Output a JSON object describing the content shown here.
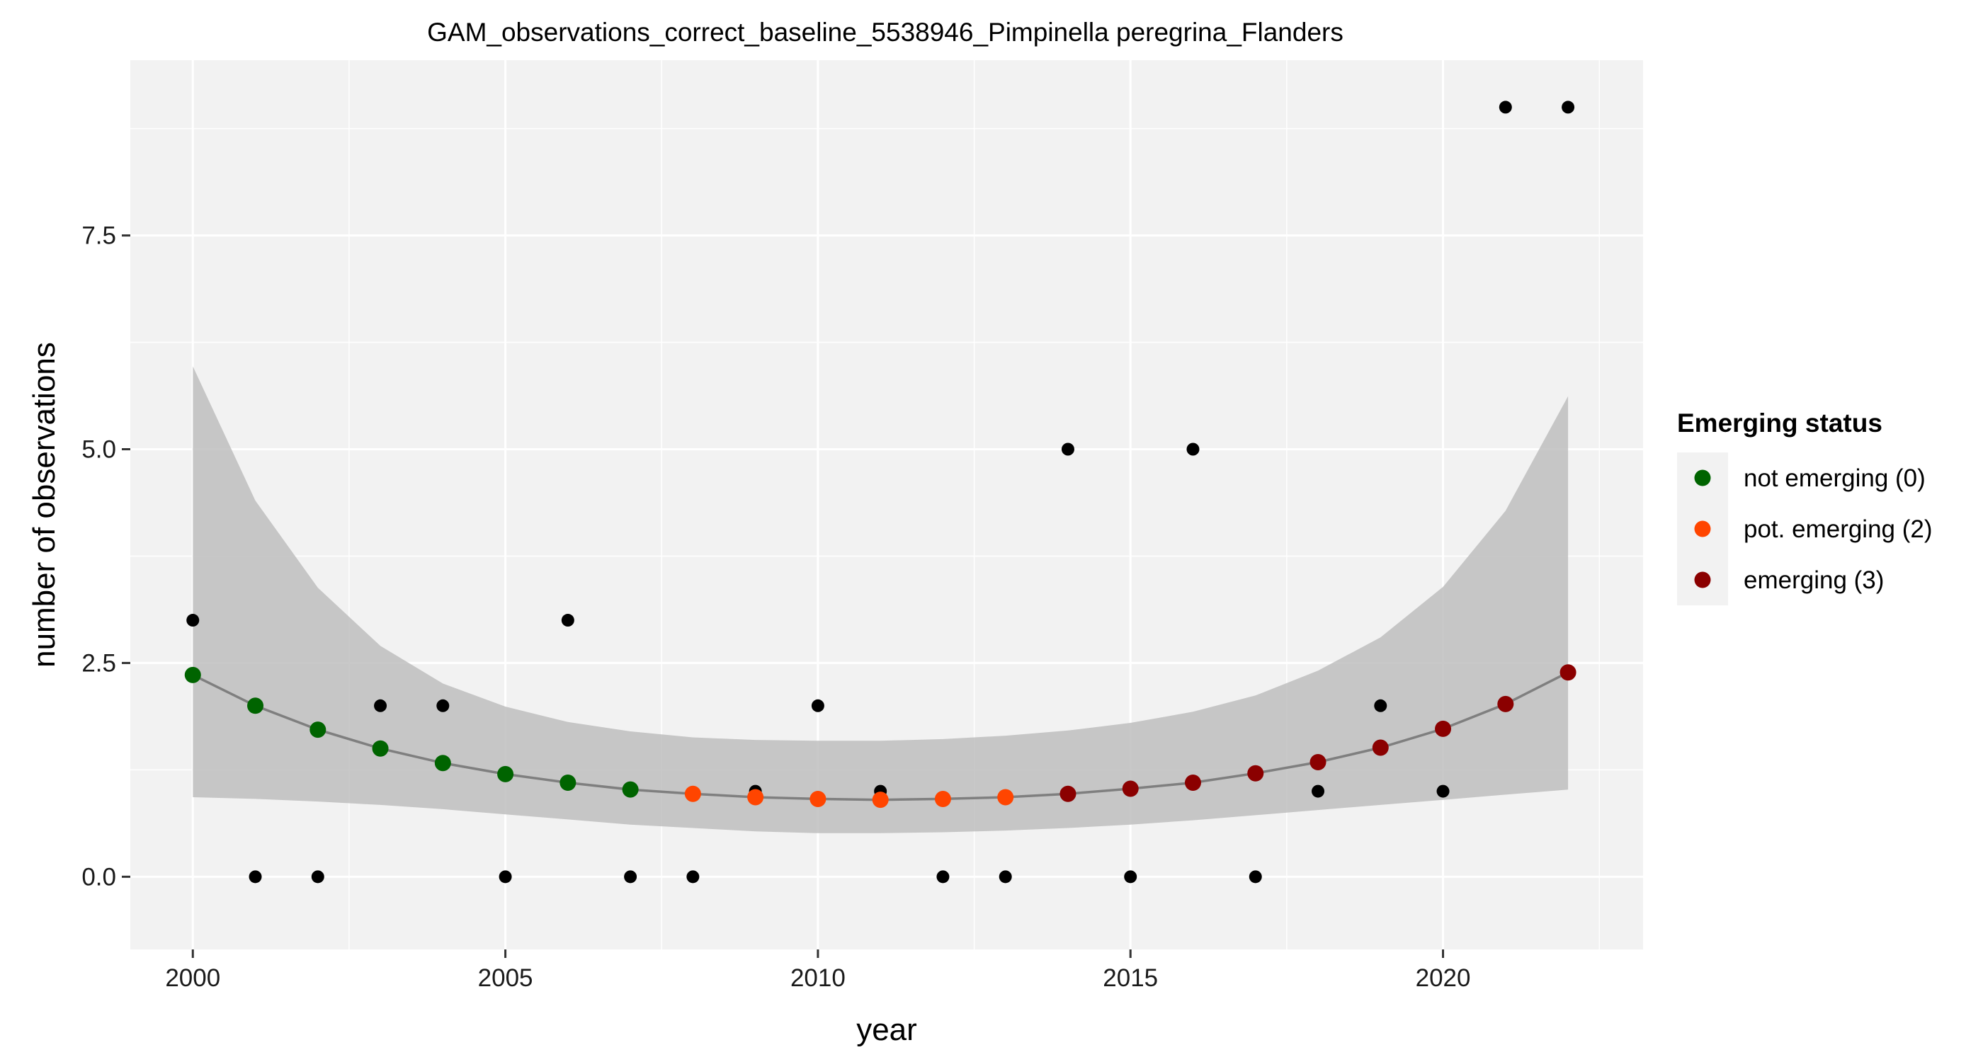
{
  "chart_data": {
    "type": "scatter",
    "title": "GAM_observations_correct_baseline_5538946_Pimpinella peregrina_Flanders",
    "xlabel": "year",
    "ylabel": "number of observations",
    "xlim": [
      1999,
      2023.2
    ],
    "ylim": [
      -0.85,
      9.55
    ],
    "x_ticks": [
      2000,
      2005,
      2010,
      2015,
      2020
    ],
    "x_tick_labels": [
      "2000",
      "2005",
      "2010",
      "2015",
      "2020"
    ],
    "y_ticks": [
      0,
      2.5,
      5,
      7.5
    ],
    "y_tick_labels": [
      "0.0",
      "2.5",
      "5.0",
      "7.5"
    ],
    "grid": true,
    "legend_placement": "right",
    "background": "#f2f2f2",
    "observed": {
      "x": [
        2000,
        2001,
        2002,
        2003,
        2004,
        2005,
        2006,
        2007,
        2008,
        2009,
        2010,
        2011,
        2012,
        2013,
        2014,
        2015,
        2016,
        2017,
        2018,
        2019,
        2020,
        2021,
        2022
      ],
      "y": [
        3,
        0,
        0,
        2,
        2,
        0,
        3,
        0,
        0,
        1,
        2,
        1,
        0,
        0,
        5,
        0,
        5,
        0,
        1,
        2,
        1,
        9,
        9
      ],
      "color": "#000000"
    },
    "fit": {
      "x": [
        2000,
        2001,
        2002,
        2003,
        2004,
        2005,
        2006,
        2007,
        2008,
        2009,
        2010,
        2011,
        2012,
        2013,
        2014,
        2015,
        2016,
        2017,
        2018,
        2019,
        2020,
        2021,
        2022
      ],
      "y": [
        2.36,
        2.0,
        1.72,
        1.5,
        1.33,
        1.2,
        1.1,
        1.02,
        0.97,
        0.93,
        0.91,
        0.9,
        0.91,
        0.93,
        0.97,
        1.03,
        1.1,
        1.21,
        1.34,
        1.51,
        1.73,
        2.02,
        2.39
      ],
      "lower": [
        0.93,
        0.91,
        0.88,
        0.84,
        0.79,
        0.73,
        0.67,
        0.61,
        0.57,
        0.53,
        0.51,
        0.51,
        0.52,
        0.54,
        0.57,
        0.61,
        0.66,
        0.72,
        0.78,
        0.84,
        0.9,
        0.96,
        1.02
      ],
      "upper": [
        5.97,
        4.4,
        3.38,
        2.7,
        2.26,
        1.99,
        1.81,
        1.7,
        1.63,
        1.6,
        1.59,
        1.59,
        1.61,
        1.65,
        1.71,
        1.8,
        1.93,
        2.12,
        2.41,
        2.8,
        3.39,
        4.28,
        5.62
      ],
      "status": [
        0,
        0,
        0,
        0,
        0,
        0,
        0,
        0,
        2,
        2,
        2,
        2,
        2,
        2,
        3,
        3,
        3,
        3,
        3,
        3,
        3,
        3,
        3
      ],
      "line_color": "#7f7f7f",
      "band_color": "#bebebe"
    },
    "legend": {
      "title": "Emerging status",
      "entries": [
        {
          "status": 0,
          "label": "not emerging (0)",
          "color": "#006400"
        },
        {
          "status": 2,
          "label": "pot. emerging (2)",
          "color": "#ff4500"
        },
        {
          "status": 3,
          "label": "emerging (3)",
          "color": "#8b0000"
        }
      ]
    }
  }
}
